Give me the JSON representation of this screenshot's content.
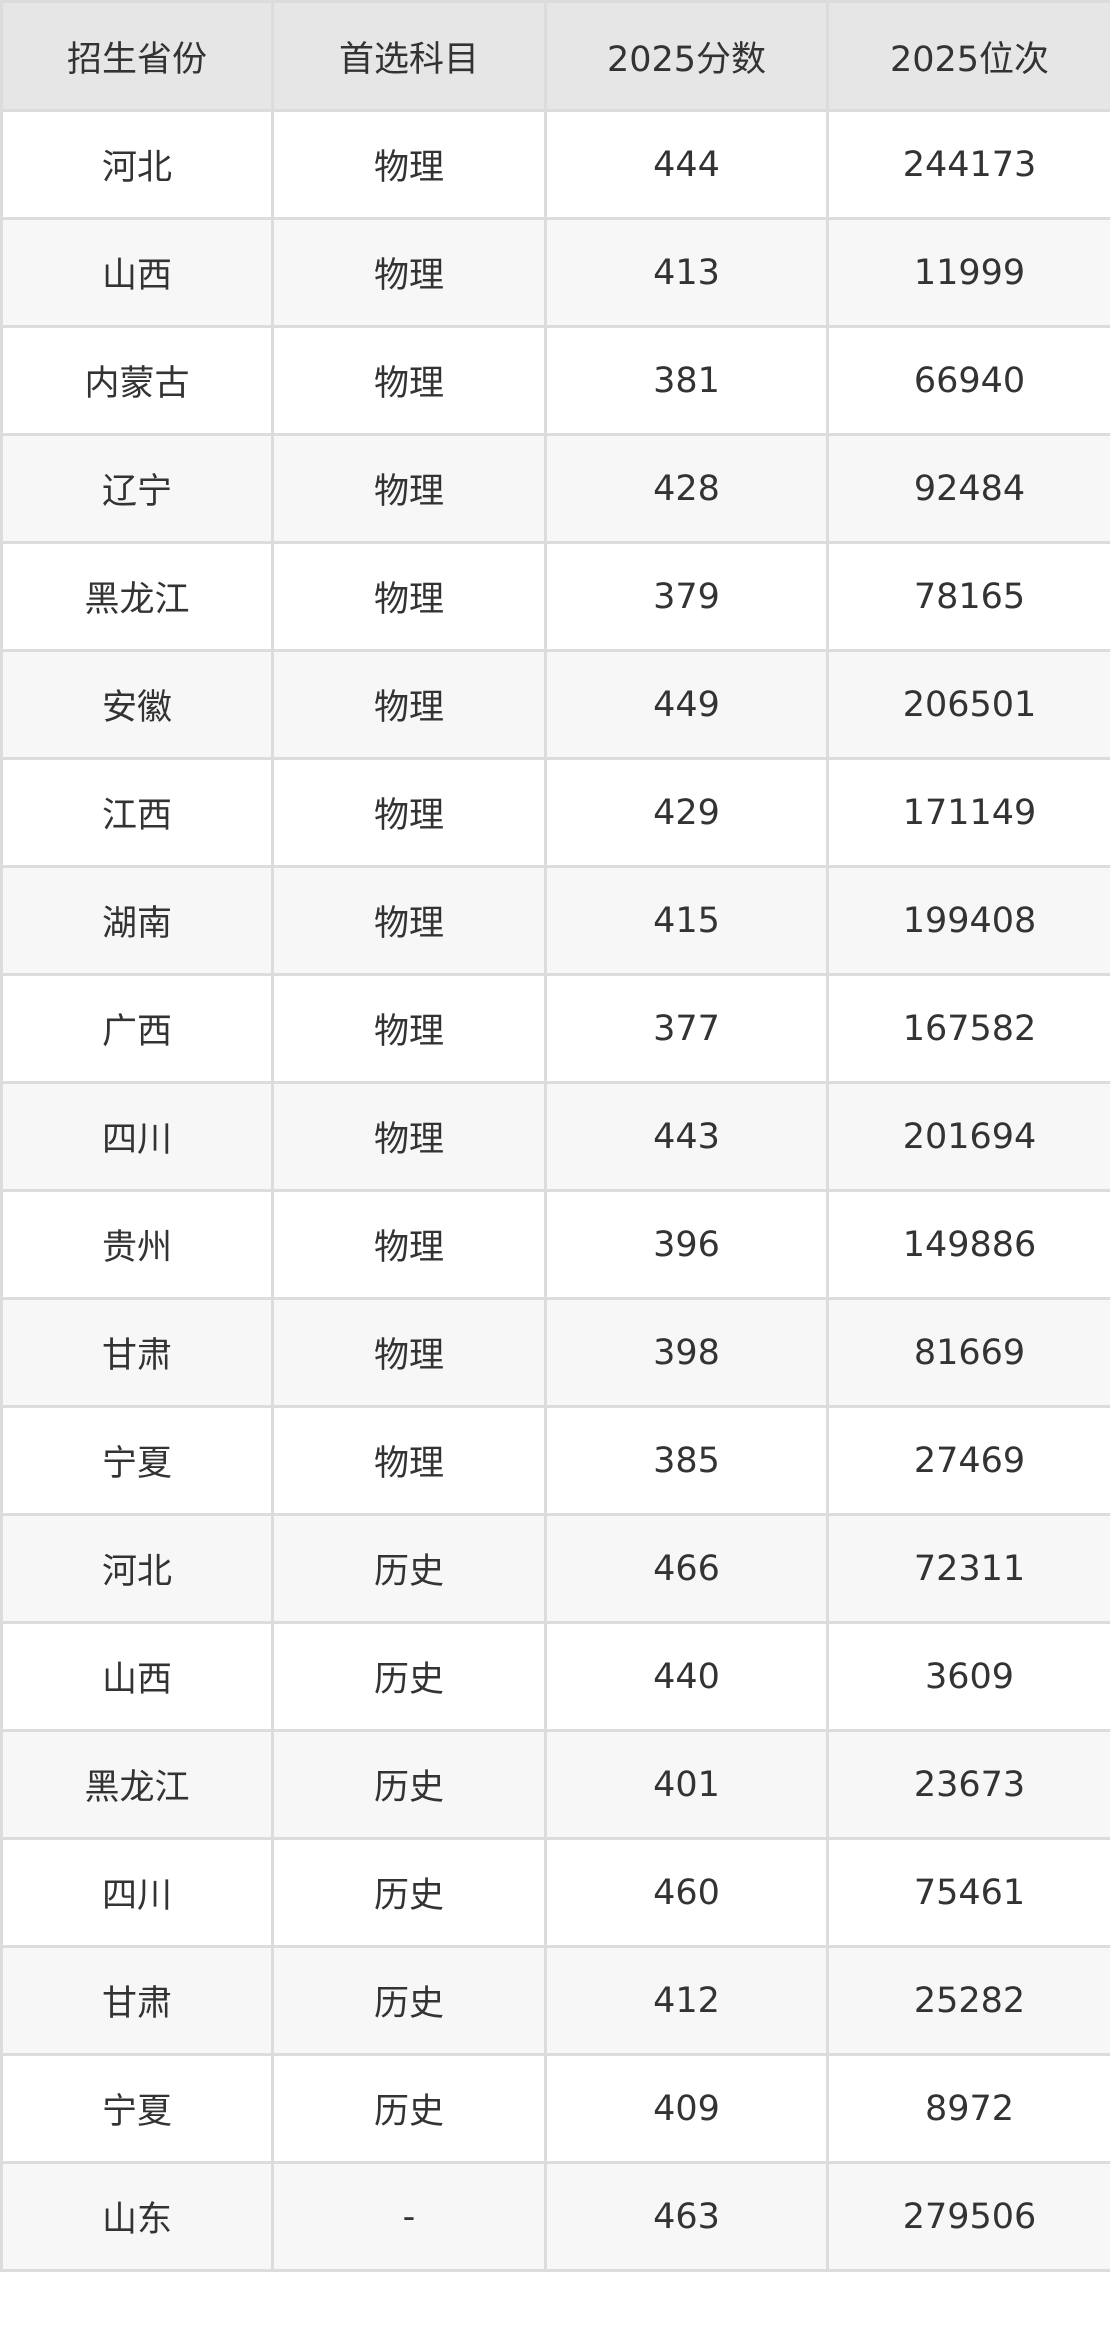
{
  "table": {
    "headers": [
      "招生省份",
      "首选科目",
      "2025分数",
      "2025位次"
    ],
    "rows": [
      [
        "河北",
        "物理",
        "444",
        "244173"
      ],
      [
        "山西",
        "物理",
        "413",
        "11999"
      ],
      [
        "内蒙古",
        "物理",
        "381",
        "66940"
      ],
      [
        "辽宁",
        "物理",
        "428",
        "92484"
      ],
      [
        "黑龙江",
        "物理",
        "379",
        "78165"
      ],
      [
        "安徽",
        "物理",
        "449",
        "206501"
      ],
      [
        "江西",
        "物理",
        "429",
        "171149"
      ],
      [
        "湖南",
        "物理",
        "415",
        "199408"
      ],
      [
        "广西",
        "物理",
        "377",
        "167582"
      ],
      [
        "四川",
        "物理",
        "443",
        "201694"
      ],
      [
        "贵州",
        "物理",
        "396",
        "149886"
      ],
      [
        "甘肃",
        "物理",
        "398",
        "81669"
      ],
      [
        "宁夏",
        "物理",
        "385",
        "27469"
      ],
      [
        "河北",
        "历史",
        "466",
        "72311"
      ],
      [
        "山西",
        "历史",
        "440",
        "3609"
      ],
      [
        "黑龙江",
        "历史",
        "401",
        "23673"
      ],
      [
        "四川",
        "历史",
        "460",
        "75461"
      ],
      [
        "甘肃",
        "历史",
        "412",
        "25282"
      ],
      [
        "宁夏",
        "历史",
        "409",
        "8972"
      ],
      [
        "山东",
        "-",
        "463",
        "279506"
      ]
    ]
  },
  "colors": {
    "header_bg": "#e6e6e6",
    "row_alt_bg": "#f7f7f7",
    "border": "#dcdcdc",
    "text": "#333333"
  }
}
